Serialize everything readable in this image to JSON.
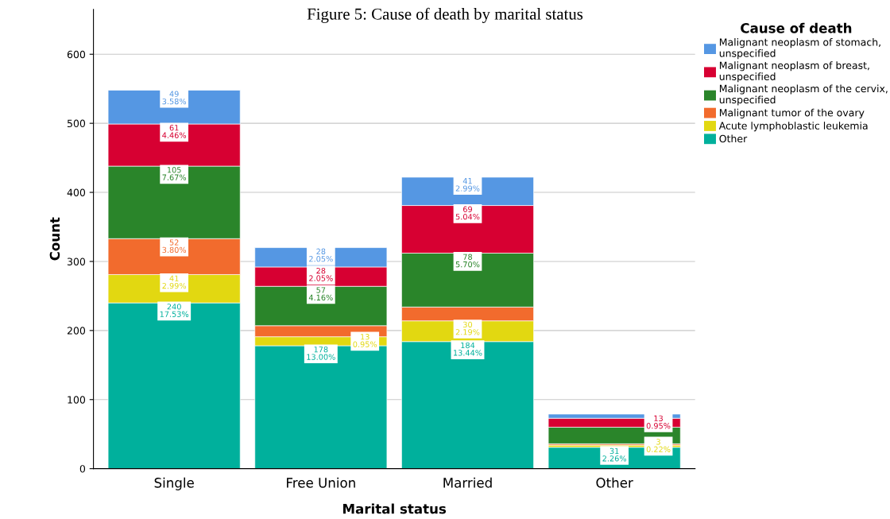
{
  "chart_data": {
    "type": "bar",
    "stacked": true,
    "title": "Figure 5: Cause of death by marital status",
    "xlabel": "Marital status",
    "ylabel": "Count",
    "legend_title": "Cause of death",
    "legend": "right",
    "categories": [
      "Single",
      "Free Union",
      "Married",
      "Other"
    ],
    "ylim": [
      0,
      665
    ],
    "yticks": [
      0,
      100,
      200,
      300,
      400,
      500,
      600
    ],
    "grid": "y",
    "series": [
      {
        "name": "Other",
        "color": "#00b09c",
        "values": [
          240,
          178,
          184,
          31
        ],
        "value_labels": [
          "240\n17.53%",
          "178\n13.00%",
          "184\n13.44%",
          "31\n2.26%"
        ]
      },
      {
        "name": "Acute lymphoblastic leukemia",
        "color": "#e2d811",
        "values": [
          41,
          13,
          30,
          3
        ],
        "value_labels": [
          "41\n2.99%",
          "13\n0.95%",
          "30\n2.19%",
          "3\n0.22%"
        ]
      },
      {
        "name": "Malignant tumor of the ovary",
        "color": "#f26b2d",
        "values": [
          52,
          16,
          20,
          2
        ],
        "value_labels": [
          "52\n3.80%",
          null,
          null,
          null
        ]
      },
      {
        "name": "Malignant neoplasm of the cervix, unspecified",
        "color": "#2a852a",
        "values": [
          105,
          57,
          78,
          24
        ],
        "value_labels": [
          "105\n7.67%",
          "57\n4.16%",
          "78\n5.70%",
          null
        ]
      },
      {
        "name": "Malignant neoplasm of breast, unspecified",
        "color": "#d70032",
        "values": [
          61,
          28,
          69,
          13
        ],
        "value_labels": [
          "61\n4.46%",
          "28\n2.05%",
          "69\n5.04%",
          "13\n0.95%"
        ]
      },
      {
        "name": "Malignant neoplasm of stomach, unspecified",
        "color": "#5597e3",
        "values": [
          49,
          28,
          41,
          6
        ],
        "value_labels": [
          "49\n3.58%",
          "28\n2.05%",
          "41\n2.99%",
          null
        ]
      }
    ]
  }
}
